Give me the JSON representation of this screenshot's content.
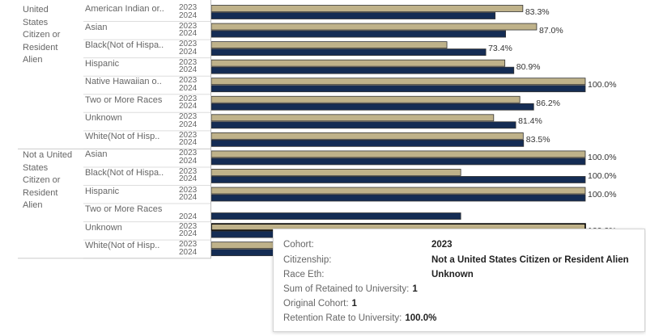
{
  "chart_data": {
    "type": "bar",
    "orientation": "horizontal",
    "year_labels": [
      "2023",
      "2024"
    ],
    "colors": {
      "2023": "#bfb28a",
      "2024": "#142c54",
      "bar_outline": "#333333"
    },
    "xlim": [
      0,
      100
    ],
    "groups": [
      {
        "citizenship": "United States Citizen or Resident Alien",
        "citizenship_lines": [
          "United",
          "States",
          "Citizen or",
          "Resident",
          "Alien"
        ],
        "races": [
          {
            "race": "American Indian or..",
            "y2023": 83.3,
            "y2024": 75.9,
            "label": "83.3%"
          },
          {
            "race": "Asian",
            "y2023": 87.0,
            "y2024": 78.7,
            "label": "87.0%"
          },
          {
            "race": "Black(Not of Hispa..",
            "y2023": 63.0,
            "y2024": 73.4,
            "label": "73.4%"
          },
          {
            "race": "Hispanic",
            "y2023": 78.5,
            "y2024": 80.9,
            "label": "80.9%"
          },
          {
            "race": "Native Hawaiian o..",
            "y2023": 100.0,
            "y2024": 100.0,
            "label": "100.0%"
          },
          {
            "race": "Two or More Races",
            "y2023": 82.5,
            "y2024": 86.2,
            "label": "86.2%"
          },
          {
            "race": "Unknown",
            "y2023": 75.5,
            "y2024": 81.4,
            "label": "81.4%"
          },
          {
            "race": "White(Not of Hisp..",
            "y2023": 83.4,
            "y2024": 83.5,
            "label": "83.5%"
          }
        ]
      },
      {
        "citizenship": "Not a United States Citizen or Resident Alien",
        "citizenship_lines": [
          "Not a United",
          "States",
          "Citizen or",
          "Resident",
          "Alien"
        ],
        "races": [
          {
            "race": "Asian",
            "y2023": 100.0,
            "y2024": 100.0,
            "label": "100.0%"
          },
          {
            "race": "Black(Not of Hispa..",
            "y2023": 66.7,
            "y2024": 100.0,
            "label": "100.0%"
          },
          {
            "race": "Hispanic",
            "y2023": 100.0,
            "y2024": 100.0,
            "label": "100.0%"
          },
          {
            "race": "Two or More Races",
            "y2024": 66.7,
            "years": [
              "2024"
            ],
            "label": ""
          },
          {
            "race": "Unknown",
            "y2023": 100.0,
            "y2024": 100.0,
            "label": "100.0%",
            "highlighted": "2023"
          },
          {
            "race": "White(Not of Hisp..",
            "y2023": 66.7,
            "y2024": 100.0,
            "label": ""
          }
        ]
      }
    ]
  },
  "tooltip": {
    "rows": [
      {
        "key": "Cohort:",
        "value": "2023",
        "bold": true
      },
      {
        "key": "Citizenship:",
        "value": "Not a United States Citizen or Resident Alien",
        "bold": true
      },
      {
        "key": "Race Eth:",
        "value": "Unknown",
        "bold": true
      },
      {
        "key": "Sum of Retained to University:",
        "value": "1",
        "bold": false
      },
      {
        "key": "Original Cohort:",
        "value": "1",
        "bold": false
      },
      {
        "key": "Retention Rate to University:",
        "value": "100.0%",
        "bold": false
      }
    ]
  }
}
